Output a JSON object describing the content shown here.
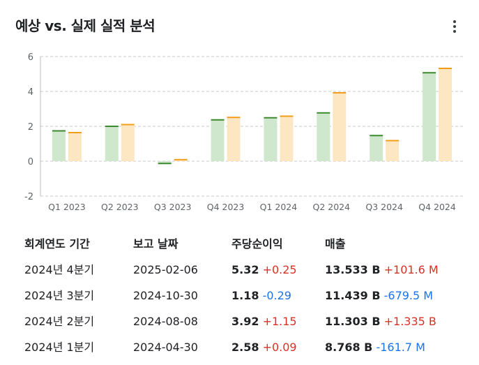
{
  "header": {
    "title": "예상 vs. 실제 실적 분석",
    "menu_icon": "more-vert-icon"
  },
  "colors": {
    "estimate_fill": "#cfe7cc",
    "estimate_line": "#3c8a2e",
    "actual_fill": "#fde7c2",
    "actual_line": "#f29d1a",
    "positive": "#d93025",
    "negative": "#1a73e8"
  },
  "chart_data": {
    "type": "bar",
    "categories": [
      "Q1 2023",
      "Q2 2023",
      "Q3 2023",
      "Q4 2023",
      "Q1 2024",
      "Q2 2024",
      "Q3 2024",
      "Q4 2024"
    ],
    "series": [
      {
        "values": [
          1.74,
          2.0,
          -0.13,
          2.37,
          2.49,
          2.77,
          1.47,
          5.07
        ]
      },
      {
        "values": [
          1.64,
          2.1,
          0.09,
          2.51,
          2.58,
          3.92,
          1.18,
          5.32
        ]
      }
    ],
    "yticks": [
      6,
      4,
      2,
      0,
      -2
    ],
    "ylim": [
      -2,
      6
    ],
    "grid": true
  },
  "table": {
    "headers": [
      "회계연도 기간",
      "보고 날짜",
      "주당순이익",
      "매출"
    ],
    "rows": [
      {
        "period": "2024년 4분기",
        "date": "2025-02-06",
        "eps": "5.32",
        "eps_diff": "+0.25",
        "eps_sign": "pos",
        "revenue": "13.533 B",
        "rev_diff": "+101.6 M",
        "rev_sign": "pos"
      },
      {
        "period": "2024년 3분기",
        "date": "2024-10-30",
        "eps": "1.18",
        "eps_diff": "-0.29",
        "eps_sign": "neg",
        "revenue": "11.439 B",
        "rev_diff": "-679.5 M",
        "rev_sign": "neg"
      },
      {
        "period": "2024년 2분기",
        "date": "2024-08-08",
        "eps": "3.92",
        "eps_diff": "+1.15",
        "eps_sign": "pos",
        "revenue": "11.303 B",
        "rev_diff": "+1.335 B",
        "rev_sign": "pos"
      },
      {
        "period": "2024년 1분기",
        "date": "2024-04-30",
        "eps": "2.58",
        "eps_diff": "+0.09",
        "eps_sign": "pos",
        "revenue": "8.768 B",
        "rev_diff": "-161.7 M",
        "rev_sign": "neg"
      }
    ]
  }
}
